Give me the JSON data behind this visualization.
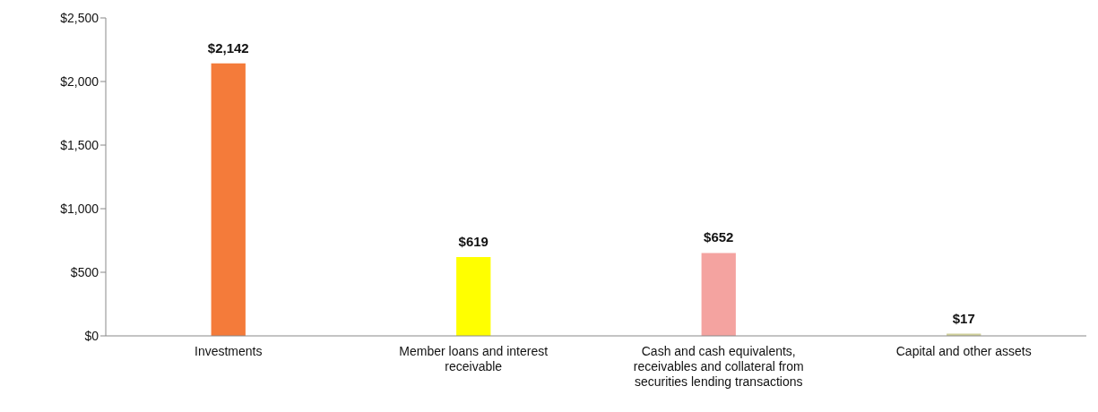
{
  "chart_data": {
    "type": "bar",
    "categories": [
      "Investments",
      "Member loans and interest receivable",
      "Cash and cash equivalents, receivables and collateral from securities lending transactions",
      "Capital and other assets"
    ],
    "values": [
      2142,
      619,
      652,
      17
    ],
    "colors": [
      "#f47b3a",
      "#ffff00",
      "#f4a3a0",
      "#cfcf9a"
    ],
    "value_labels": [
      "$2,142",
      "$619",
      "$652",
      "$17"
    ],
    "ylim": [
      0,
      2500
    ],
    "yticks": [
      {
        "value": 0,
        "label": "$0"
      },
      {
        "value": 500,
        "label": "$500"
      },
      {
        "value": 1000,
        "label": "$1,000"
      },
      {
        "value": 1500,
        "label": "$1,500"
      },
      {
        "value": 2000,
        "label": "$2,000"
      },
      {
        "value": 2500,
        "label": "$2,500"
      }
    ],
    "grid": false,
    "legend": false
  }
}
